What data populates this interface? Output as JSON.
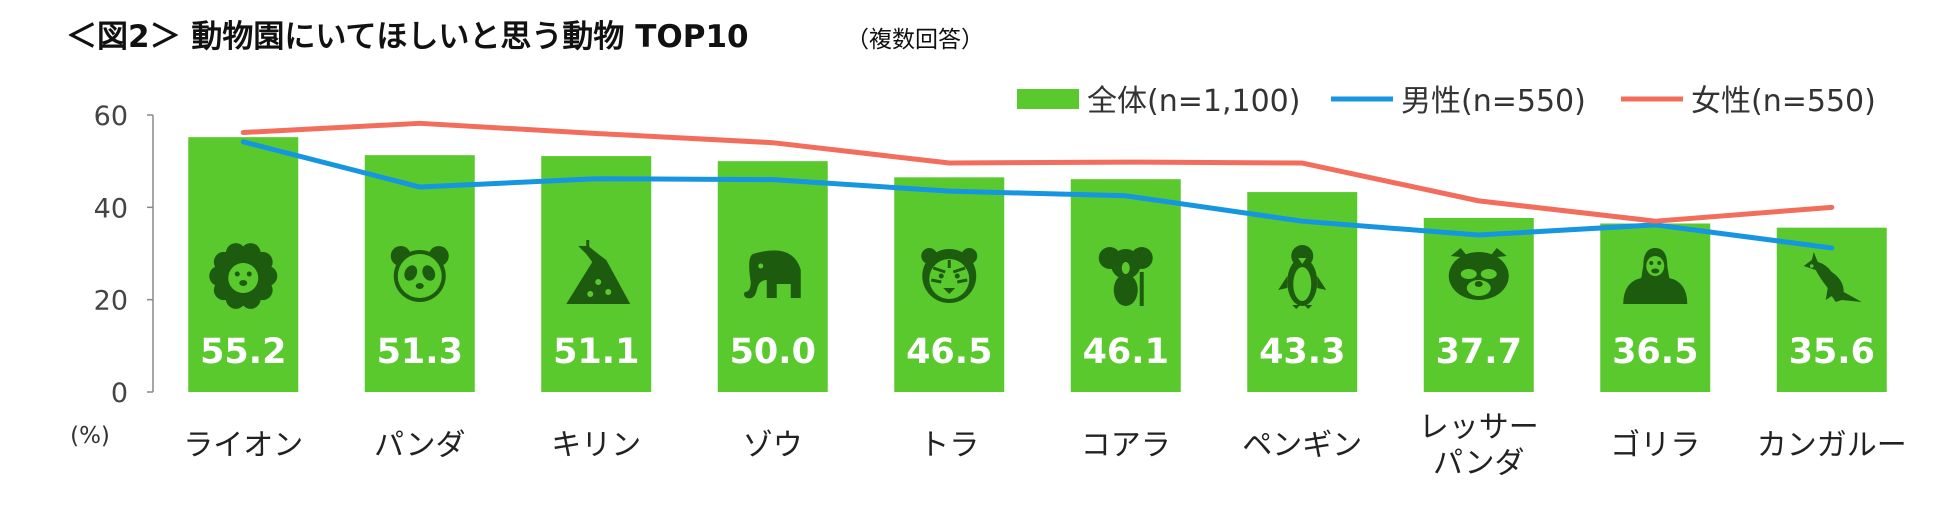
{
  "chart_data": {
    "type": "bar",
    "title": "＜図2＞ 動物園にいてほしいと思う動物 TOP10",
    "subtitle": "（複数回答）",
    "unit_label": "(%)",
    "ylim": [
      0,
      60
    ],
    "yticks": [
      "0",
      "20",
      "40",
      "60"
    ],
    "categories": [
      [
        "ライオン"
      ],
      [
        "パンダ"
      ],
      [
        "キリン"
      ],
      [
        "ゾウ"
      ],
      [
        "トラ"
      ],
      [
        "コアラ"
      ],
      [
        "ペンギン"
      ],
      [
        "レッサー",
        "パンダ"
      ],
      [
        "ゴリラ"
      ],
      [
        "カンガルー"
      ]
    ],
    "icons": [
      "lion-icon",
      "panda-icon",
      "giraffe-icon",
      "elephant-icon",
      "tiger-icon",
      "koala-icon",
      "penguin-icon",
      "red-panda-icon",
      "gorilla-icon",
      "kangaroo-icon"
    ],
    "series": [
      {
        "name": "全体(n=1,100)",
        "kind": "bar",
        "values": [
          55.2,
          51.3,
          51.1,
          50.0,
          46.5,
          46.1,
          43.3,
          37.7,
          36.5,
          35.6
        ],
        "labels": [
          "55.2",
          "51.3",
          "51.1",
          "50.0",
          "46.5",
          "46.1",
          "43.3",
          "37.7",
          "36.5",
          "35.6"
        ],
        "color": "#5ac92e"
      },
      {
        "name": "男性(n=550)",
        "kind": "line",
        "values": [
          54.2,
          44.4,
          46.2,
          46.0,
          43.5,
          42.5,
          37.0,
          34.0,
          36.2,
          31.2
        ],
        "color": "#1696e0"
      },
      {
        "name": "女性(n=550)",
        "kind": "line",
        "values": [
          56.2,
          58.2,
          56.0,
          54.0,
          49.6,
          49.8,
          49.6,
          41.4,
          37.0,
          40.0
        ],
        "color": "#f26d5b"
      }
    ],
    "legend_position": "top-right",
    "grid": false
  }
}
